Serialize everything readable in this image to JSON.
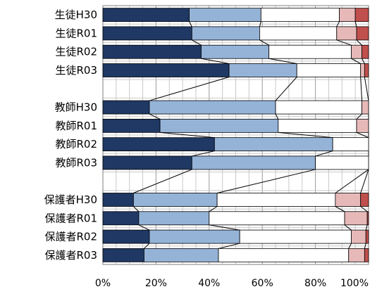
{
  "chart_data": {
    "type": "bar",
    "stacked": true,
    "orientation": "horizontal",
    "percent_axis": true,
    "xlim": [
      0,
      100
    ],
    "x_ticks": [
      "0%",
      "20%",
      "40%",
      "60%",
      "80%",
      "100%"
    ],
    "grid": true,
    "legend": "none",
    "connector_lines": true,
    "categories": [
      "生徒H30",
      "生徒R01",
      "生徒R02",
      "生徒R03",
      "教師H30",
      "教師R01",
      "教師R02",
      "教師R03",
      "保護者H30",
      "保護者R01",
      "保護者R02",
      "保護者R03"
    ],
    "groups": [
      [
        "生徒H30",
        "生徒R01",
        "生徒R02",
        "生徒R03"
      ],
      [
        "教師H30",
        "教師R01",
        "教師R02",
        "教師R03"
      ],
      [
        "保護者H30",
        "保護者R01",
        "保護者R02",
        "保護者R03"
      ]
    ],
    "series_colors": [
      "#1f3864",
      "#95b3d7",
      "#ffffff",
      "#e6b9b8",
      "#c0504d"
    ],
    "series": [
      {
        "values": [
          32.5,
          33.5,
          37.0,
          47.5,
          17.5,
          21.5,
          42.0,
          33.5,
          11.5,
          13.5,
          17.5,
          15.5
        ]
      },
      {
        "values": [
          27.0,
          25.5,
          25.5,
          25.5,
          47.5,
          44.5,
          44.5,
          46.5,
          31.5,
          26.5,
          34.0,
          28.0
        ]
      },
      {
        "values": [
          29.5,
          29.0,
          31.0,
          24.0,
          32.5,
          29.5,
          13.5,
          20.0,
          44.5,
          51.0,
          42.0,
          49.0
        ]
      },
      {
        "values": [
          6.0,
          7.5,
          4.0,
          1.5,
          2.5,
          4.5,
          0.0,
          0.0,
          9.5,
          8.5,
          5.5,
          6.0
        ]
      },
      {
        "values": [
          5.0,
          4.5,
          2.5,
          1.5,
          0.0,
          0.0,
          0.0,
          0.0,
          3.0,
          0.5,
          1.0,
          1.5
        ]
      }
    ]
  }
}
